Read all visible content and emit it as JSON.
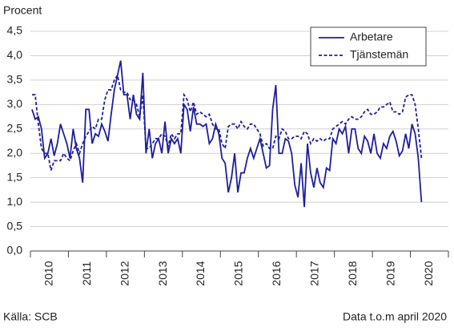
{
  "chart_data": {
    "type": "line",
    "y_label": "Procent",
    "source": "Källa: SCB",
    "note": "Data t.o.m april 2020",
    "categories": [
      null,
      null,
      null,
      null,
      null,
      null,
      "2010",
      null,
      null,
      null,
      null,
      null,
      null,
      null,
      null,
      null,
      null,
      null,
      "2011",
      null,
      null,
      null,
      null,
      null,
      null,
      null,
      null,
      null,
      null,
      null,
      "2012",
      null,
      null,
      null,
      null,
      null,
      null,
      null,
      null,
      null,
      null,
      null,
      "2013",
      null,
      null,
      null,
      null,
      null,
      null,
      null,
      null,
      null,
      null,
      null,
      "2014",
      null,
      null,
      null,
      null,
      null,
      null,
      null,
      null,
      null,
      null,
      null,
      "2015",
      null,
      null,
      null,
      null,
      null,
      null,
      null,
      null,
      null,
      null,
      null,
      "2016",
      null,
      null,
      null,
      null,
      null,
      null,
      null,
      null,
      null,
      null,
      null,
      "2017",
      null,
      null,
      null,
      null,
      null,
      null,
      null,
      null,
      null,
      null,
      null,
      "2018",
      null,
      null,
      null,
      null,
      null,
      null,
      null,
      null,
      null,
      null,
      null,
      "2019",
      null,
      null,
      null,
      null,
      null,
      null,
      null,
      null,
      null,
      null,
      null,
      "2020",
      null,
      null,
      null,
      null,
      null
    ],
    "series": [
      {
        "name": "Arbetare",
        "color": "#1e1e9e",
        "dash": false,
        "values": [
          2.9,
          2.7,
          2.75,
          2.5,
          1.9,
          2.0,
          2.3,
          1.95,
          2.2,
          2.6,
          2.4,
          2.2,
          1.9,
          2.5,
          2.1,
          1.9,
          1.4,
          2.9,
          2.9,
          2.2,
          2.4,
          2.35,
          2.6,
          2.45,
          2.25,
          2.8,
          3.3,
          3.6,
          3.9,
          3.2,
          3.2,
          2.7,
          3.2,
          2.8,
          2.7,
          3.65,
          2.0,
          2.5,
          1.9,
          2.2,
          2.3,
          2.0,
          2.65,
          2.0,
          2.3,
          2.2,
          2.3,
          2.0,
          3.0,
          2.9,
          2.45,
          2.95,
          2.6,
          2.6,
          2.55,
          2.6,
          2.2,
          2.3,
          2.6,
          2.4,
          1.9,
          1.8,
          1.2,
          1.5,
          2.0,
          1.2,
          1.6,
          1.6,
          1.9,
          2.1,
          1.9,
          2.1,
          2.3,
          2.0,
          1.7,
          1.75,
          2.9,
          3.4,
          2.0,
          2.0,
          2.3,
          2.25,
          2.0,
          1.35,
          1.1,
          1.8,
          0.9,
          2.2,
          1.6,
          1.3,
          1.7,
          1.4,
          1.3,
          1.7,
          1.65,
          2.3,
          2.2,
          2.5,
          2.4,
          2.55,
          2.0,
          2.5,
          2.5,
          2.1,
          2.0,
          2.35,
          2.25,
          2.0,
          2.4,
          2.0,
          1.9,
          2.2,
          2.1,
          2.35,
          2.45,
          2.25,
          1.95,
          2.05,
          2.4,
          2.1,
          2.6,
          2.4,
          1.9,
          1.0,
          null,
          null,
          null,
          null,
          null,
          null,
          null,
          null
        ]
      },
      {
        "name": "Tjänstemän",
        "color": "#1e1e9e",
        "dash": true,
        "values": [
          3.2,
          3.2,
          2.6,
          2.1,
          2.0,
          2.0,
          1.65,
          1.85,
          1.85,
          1.85,
          2.0,
          1.9,
          1.85,
          2.05,
          2.2,
          2.0,
          2.2,
          2.35,
          2.45,
          2.55,
          2.5,
          2.7,
          2.7,
          3.1,
          3.3,
          3.3,
          3.5,
          3.6,
          3.3,
          3.25,
          3.25,
          3.1,
          3.1,
          3.0,
          2.75,
          3.2,
          2.1,
          2.1,
          2.2,
          2.3,
          2.3,
          2.4,
          2.35,
          2.15,
          2.4,
          2.3,
          2.4,
          2.4,
          3.2,
          3.1,
          2.85,
          3.05,
          2.8,
          2.85,
          2.8,
          2.75,
          2.8,
          2.6,
          2.5,
          2.5,
          2.2,
          2.1,
          2.55,
          2.6,
          2.6,
          2.5,
          2.65,
          2.55,
          2.5,
          2.6,
          2.6,
          2.5,
          2.4,
          2.15,
          2.2,
          2.1,
          2.1,
          2.35,
          2.3,
          2.5,
          2.45,
          2.3,
          2.3,
          2.35,
          2.35,
          2.3,
          2.45,
          2.4,
          2.2,
          2.3,
          2.25,
          2.3,
          2.25,
          2.3,
          2.3,
          2.5,
          2.55,
          2.6,
          2.65,
          2.6,
          2.7,
          2.75,
          2.7,
          2.7,
          2.75,
          2.85,
          2.9,
          2.8,
          2.8,
          2.85,
          2.95,
          2.95,
          3.0,
          3.05,
          2.85,
          2.85,
          2.8,
          2.85,
          3.15,
          3.2,
          3.2,
          3.0,
          2.5,
          1.9,
          null,
          null,
          null,
          null,
          null,
          null,
          null,
          null
        ]
      }
    ],
    "ylim": [
      0,
      4.5
    ],
    "yticks": [
      {
        "value": 0,
        "label": "0,0"
      },
      {
        "value": 0.5,
        "label": "0,5"
      },
      {
        "value": 1,
        "label": "1,0"
      },
      {
        "value": 1.5,
        "label": "1,5"
      },
      {
        "value": 2,
        "label": "2,0"
      },
      {
        "value": 2.5,
        "label": "2,5"
      },
      {
        "value": 3,
        "label": "3,0"
      },
      {
        "value": 3.5,
        "label": "3,5"
      },
      {
        "value": 4,
        "label": "4,0"
      },
      {
        "value": 4.5,
        "label": "4,5"
      }
    ],
    "grid": true,
    "legend": "upper right"
  }
}
